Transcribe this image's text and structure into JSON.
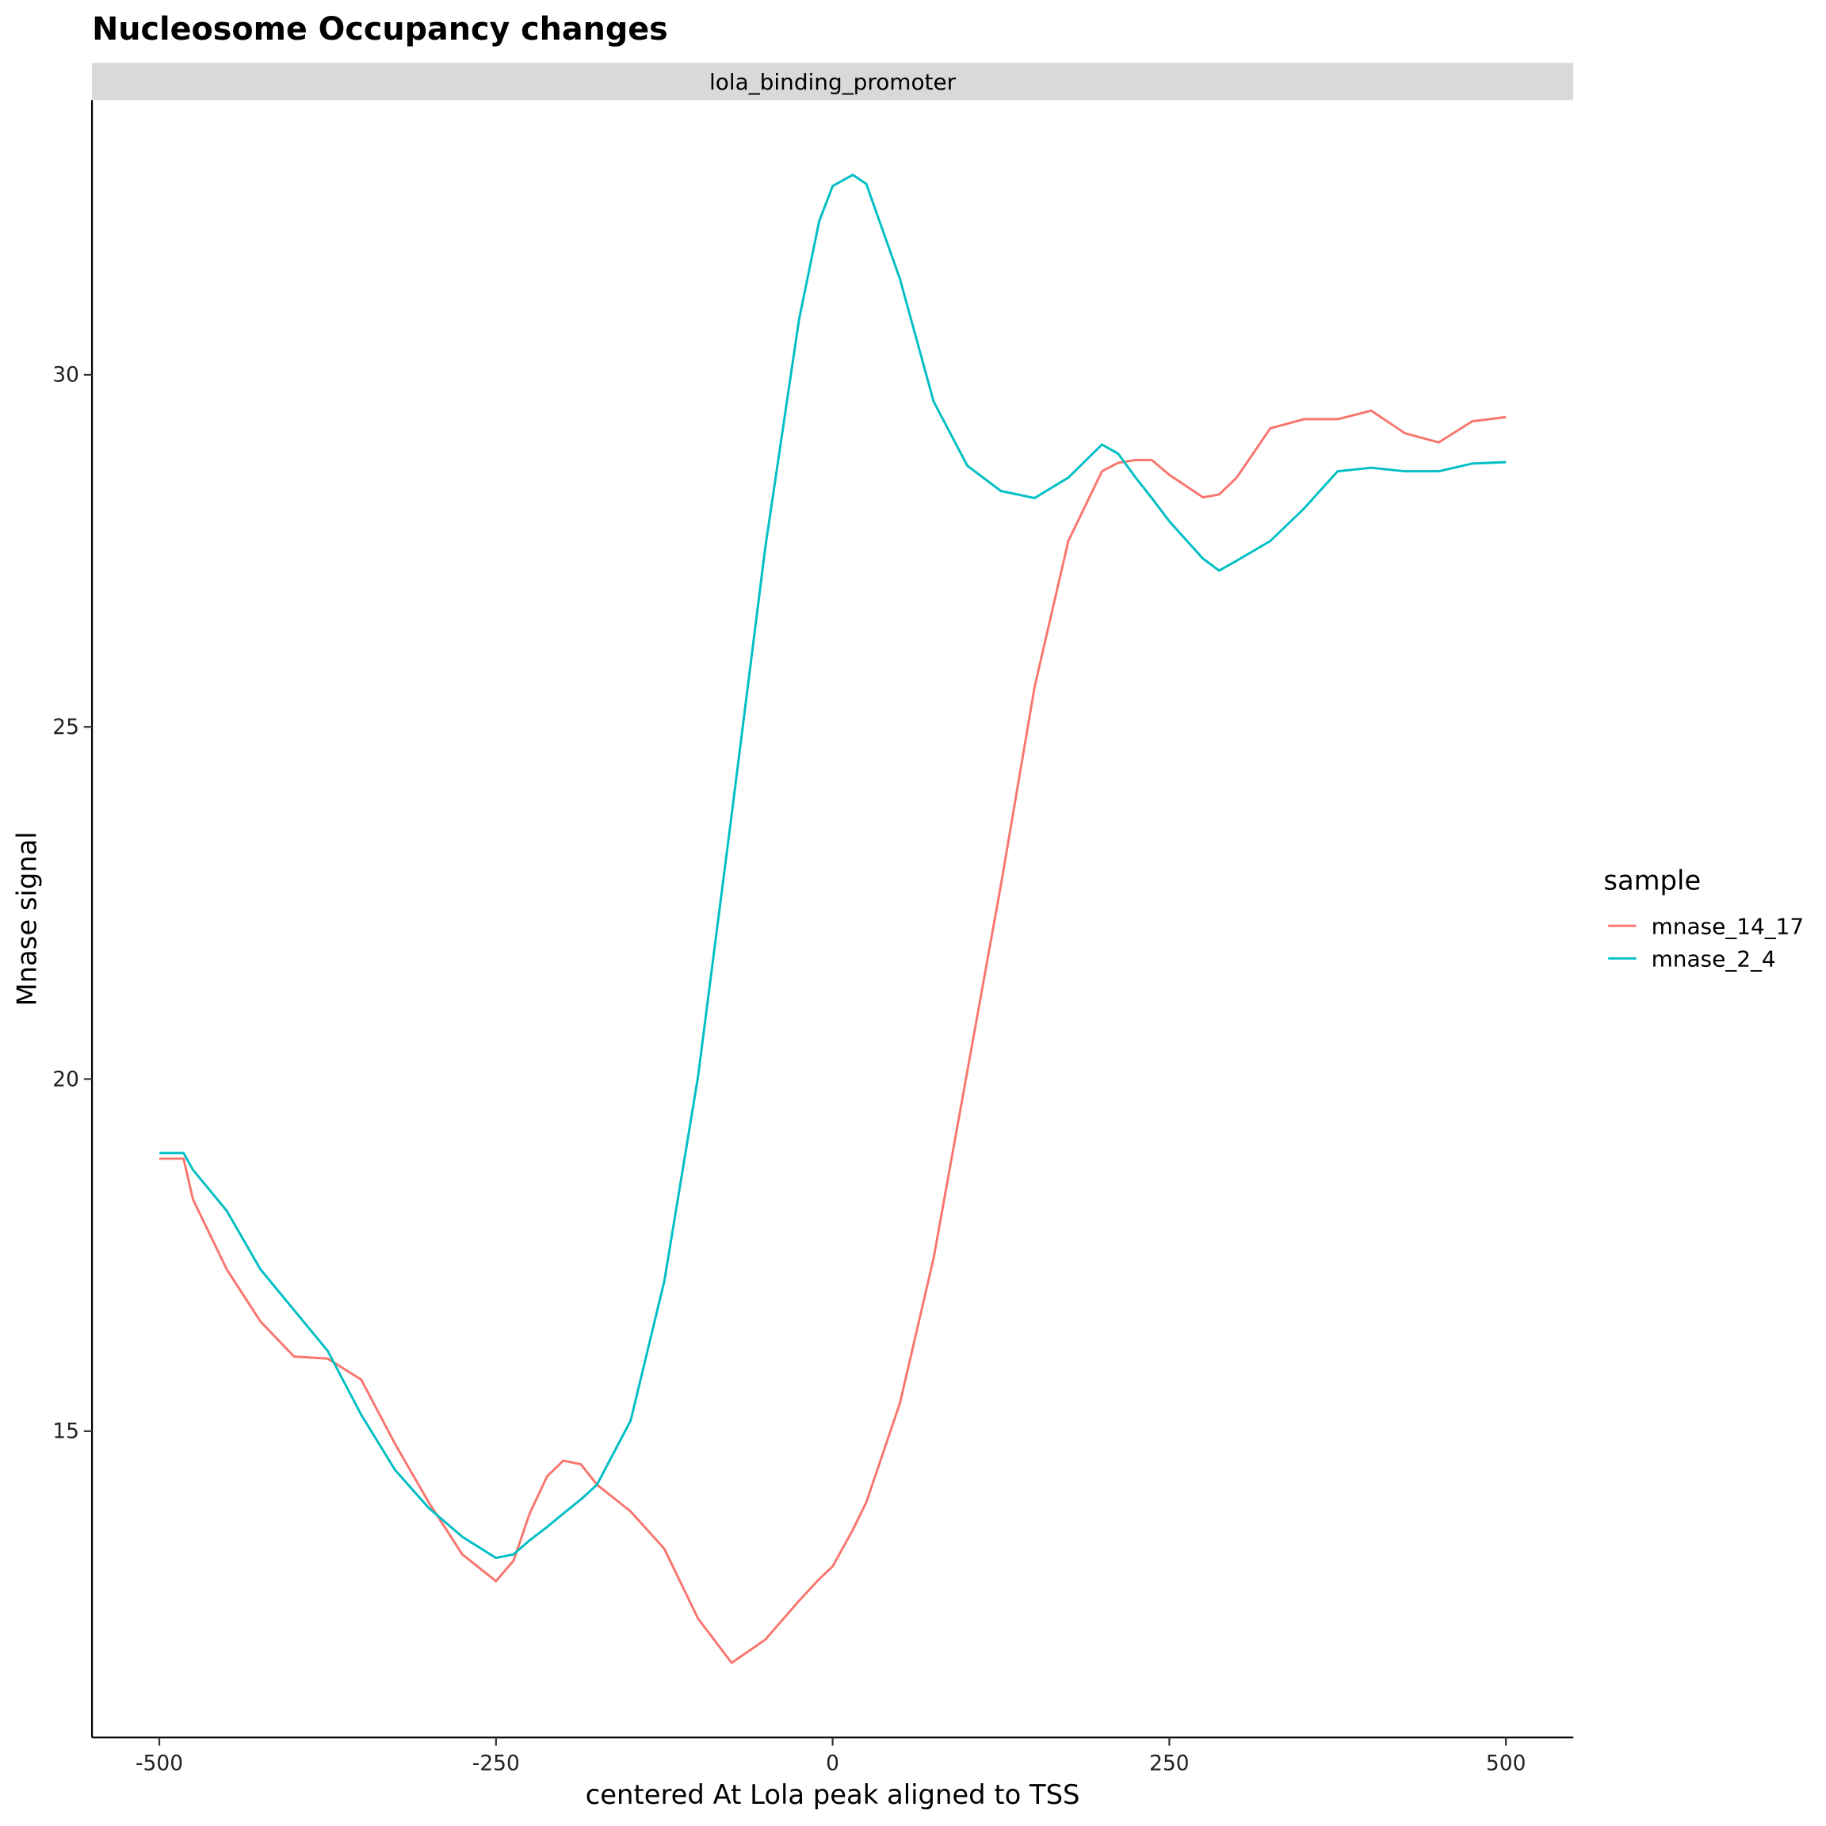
{
  "chart_data": {
    "type": "line",
    "title": "Nucleosome Occupancy changes",
    "facet": "lola_binding_promoter",
    "x_label": "centered At Lola peak aligned to TSS",
    "y_label": "Mnase signal",
    "legend_title": "sample",
    "x": [
      -500,
      -482,
      -475,
      -450,
      -425,
      -400,
      -375,
      -350,
      -325,
      -300,
      -275,
      -250,
      -237,
      -225,
      -212,
      -200,
      -187,
      -175,
      -150,
      -125,
      -100,
      -75,
      -50,
      -25,
      -10,
      0,
      15,
      25,
      50,
      75,
      100,
      125,
      150,
      175,
      200,
      212,
      225,
      237,
      250,
      275,
      287,
      300,
      325,
      350,
      375,
      400,
      425,
      450,
      475,
      500
    ],
    "series": [
      {
        "name": "mnase_14_17",
        "color": "#F8766D",
        "values": [
          18.87,
          18.87,
          18.29,
          17.3,
          16.56,
          16.06,
          16.03,
          15.73,
          14.82,
          13.99,
          13.25,
          12.87,
          13.16,
          13.83,
          14.36,
          14.58,
          14.53,
          14.24,
          13.86,
          13.33,
          12.34,
          11.71,
          12.04,
          12.59,
          12.9,
          13.08,
          13.6,
          13.99,
          15.4,
          17.46,
          20.11,
          22.76,
          25.57,
          27.64,
          28.63,
          28.75,
          28.79,
          28.79,
          28.58,
          28.26,
          28.3,
          28.54,
          29.24,
          29.37,
          29.37,
          29.49,
          29.17,
          29.04,
          29.34,
          29.4
        ]
      },
      {
        "name": "mnase_2_4",
        "color": "#00BFC4",
        "values": [
          18.95,
          18.95,
          18.71,
          18.13,
          17.3,
          16.72,
          16.14,
          15.23,
          14.45,
          13.91,
          13.5,
          13.2,
          13.25,
          13.45,
          13.64,
          13.83,
          14.03,
          14.24,
          15.15,
          17.13,
          20.03,
          23.75,
          27.55,
          30.78,
          32.18,
          32.68,
          32.84,
          32.71,
          31.36,
          29.62,
          28.71,
          28.35,
          28.25,
          28.54,
          29.01,
          28.88,
          28.54,
          28.25,
          27.92,
          27.39,
          27.22,
          27.36,
          27.64,
          28.1,
          28.63,
          28.68,
          28.63,
          28.63,
          28.74,
          28.76
        ]
      }
    ],
    "xlim": [
      -550,
      550
    ],
    "xticks": [
      -500,
      -250,
      0,
      250,
      500
    ],
    "ylim": [
      10.65,
      33.9
    ],
    "yticks": [
      15,
      20,
      25,
      30
    ]
  }
}
